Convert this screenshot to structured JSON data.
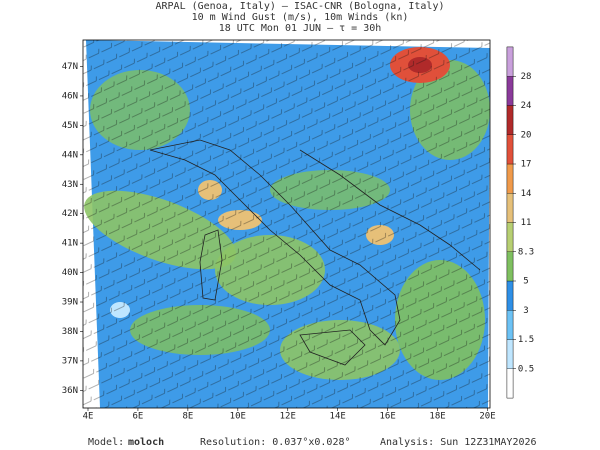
{
  "header": {
    "lines": [
      "ARPAL (Genoa, Italy)  —  ISAC-CNR (Bologna, Italy)",
      "10 m Wind Gust (m/s), 10m Winds (kn)",
      "18 UTC Mon 01 JUN  —  τ = 30h"
    ]
  },
  "map": {
    "lat_ticks": [
      {
        "value": 36,
        "label": "36N"
      },
      {
        "value": 37,
        "label": "37N"
      },
      {
        "value": 38,
        "label": "38N"
      },
      {
        "value": 39,
        "label": "39N"
      },
      {
        "value": 40,
        "label": "40N"
      },
      {
        "value": 41,
        "label": "41N"
      },
      {
        "value": 42,
        "label": "42N"
      },
      {
        "value": 43,
        "label": "43N"
      },
      {
        "value": 44,
        "label": "44N"
      },
      {
        "value": 45,
        "label": "45N"
      },
      {
        "value": 46,
        "label": "46N"
      },
      {
        "value": 47,
        "label": "47N"
      }
    ],
    "lon_ticks": [
      {
        "value": 4,
        "label": "4E"
      },
      {
        "value": 6,
        "label": "6E"
      },
      {
        "value": 8,
        "label": "8E"
      },
      {
        "value": 10,
        "label": "10E"
      },
      {
        "value": 12,
        "label": "12E"
      },
      {
        "value": 14,
        "label": "14E"
      },
      {
        "value": 16,
        "label": "16E"
      },
      {
        "value": 18,
        "label": "18E"
      },
      {
        "value": 20,
        "label": "20E"
      }
    ],
    "latlim": [
      35.4,
      47.9
    ],
    "lonlim": [
      3.8,
      20.1
    ]
  },
  "colorbar": {
    "levels": [
      0.5,
      1.5,
      3,
      5,
      8.3,
      11,
      14,
      17,
      20,
      24,
      28
    ],
    "colors": [
      "#ffffff",
      "#bfe6ff",
      "#6cc2f5",
      "#2e8fe6",
      "#7fc060",
      "#b7cf72",
      "#e6c079",
      "#f09a4a",
      "#e0503a",
      "#b02a2a",
      "#8a3a9a",
      "#c9a0dc"
    ]
  },
  "footer": {
    "model_label": "Model:",
    "model": "moloch",
    "resolution": "Resolution: 0.037°x0.028°",
    "analysis": "Analysis: Sun 12Z31MAY2026"
  }
}
